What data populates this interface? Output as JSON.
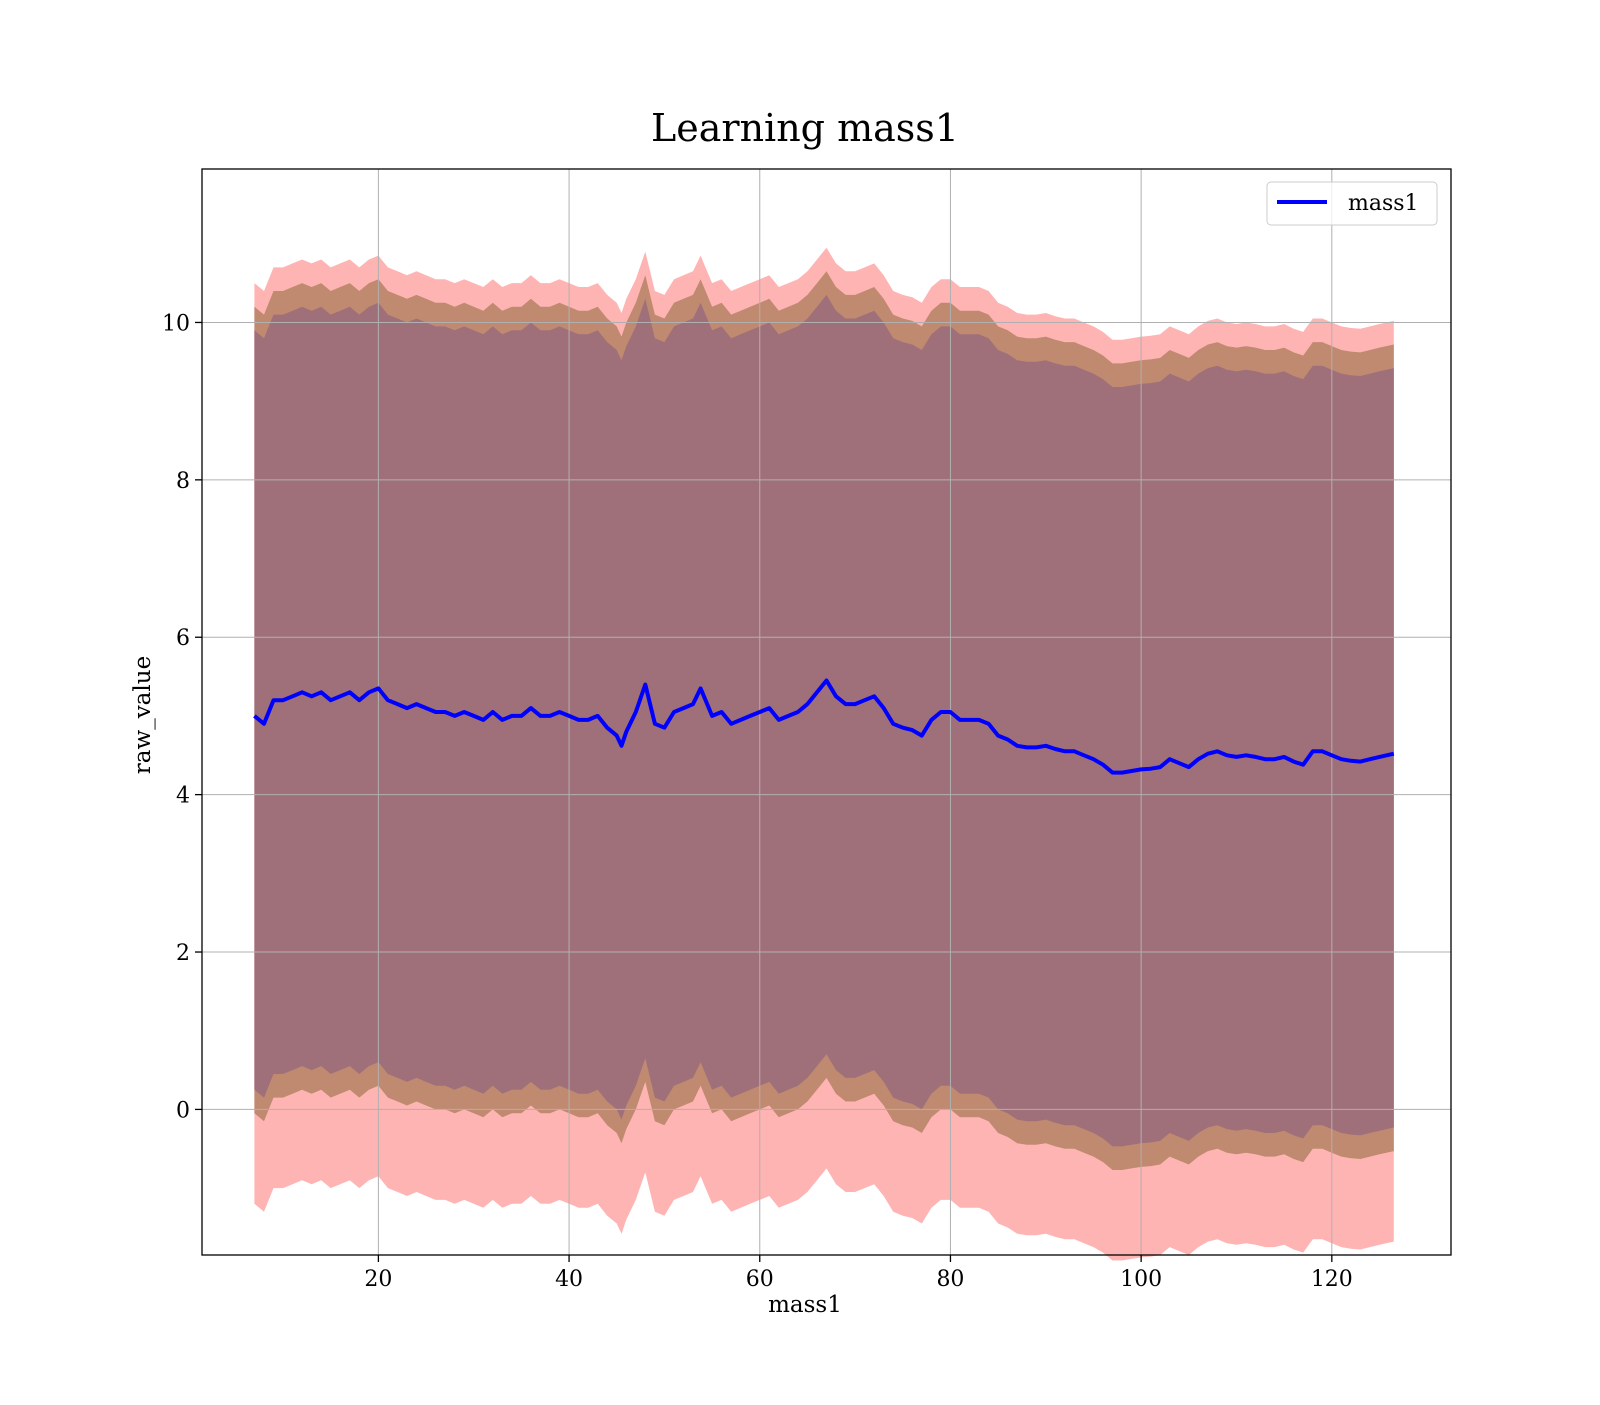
{
  "chart_data": {
    "type": "area",
    "title": "Learning mass1",
    "xlabel": "mass1",
    "ylabel": "raw_value",
    "xlim": [
      1.5,
      132.5
    ],
    "ylim": [
      -1.85,
      11.95
    ],
    "x_ticks": [
      20,
      40,
      60,
      80,
      100,
      120
    ],
    "y_ticks": [
      0,
      2,
      4,
      6,
      8,
      10
    ],
    "grid": true,
    "legend": {
      "position": "top-right",
      "entries": [
        "mass1"
      ]
    },
    "colors": {
      "line": "#0000ff",
      "outer_band": "#ff8c8c",
      "middle_band": "#c08a70",
      "inner_band": "#a0707a",
      "grid": "#b0b0b0"
    },
    "series": [
      {
        "name": "mass1",
        "x": [
          7.0,
          8,
          9,
          10,
          11,
          12,
          13,
          14,
          15,
          16,
          17,
          18,
          19,
          20,
          21,
          22,
          23,
          24,
          25,
          26,
          27,
          28,
          29,
          30,
          31,
          32,
          33,
          34,
          35,
          36,
          37,
          38,
          39,
          40,
          41,
          42,
          43,
          44,
          45,
          45.5,
          46,
          47,
          48,
          49,
          50,
          51,
          52,
          53,
          53.8,
          55,
          56,
          57,
          58,
          59,
          60,
          61,
          62,
          63,
          64,
          65,
          66,
          67,
          68,
          69,
          70,
          71,
          72,
          73,
          74,
          75,
          76,
          77,
          78,
          79,
          80,
          81,
          82,
          83,
          84,
          85,
          86,
          87,
          88,
          89,
          90,
          91,
          92,
          93,
          94,
          95,
          96,
          97,
          98,
          99,
          100,
          101,
          102,
          103,
          104,
          105,
          106,
          107,
          108,
          109,
          110,
          111,
          112,
          113,
          114,
          115,
          116,
          117,
          118,
          119,
          120,
          121,
          122,
          123,
          124,
          125,
          126.5
        ],
        "values": [
          5.0,
          4.9,
          5.2,
          5.2,
          5.25,
          5.3,
          5.25,
          5.3,
          5.2,
          5.25,
          5.3,
          5.2,
          5.3,
          5.35,
          5.2,
          5.15,
          5.1,
          5.15,
          5.1,
          5.05,
          5.05,
          5.0,
          5.05,
          5.0,
          4.95,
          5.05,
          4.95,
          5.0,
          5.0,
          5.1,
          5.0,
          5.0,
          5.05,
          5.0,
          4.95,
          4.95,
          5.0,
          4.85,
          4.75,
          4.62,
          4.8,
          5.05,
          5.4,
          4.9,
          4.85,
          5.05,
          5.1,
          5.15,
          5.35,
          5.0,
          5.05,
          4.9,
          4.95,
          5.0,
          5.05,
          5.1,
          4.95,
          5.0,
          5.05,
          5.15,
          5.3,
          5.45,
          5.25,
          5.15,
          5.15,
          5.2,
          5.25,
          5.1,
          4.9,
          4.85,
          4.82,
          4.75,
          4.95,
          5.05,
          5.05,
          4.95,
          4.95,
          4.95,
          4.9,
          4.75,
          4.7,
          4.62,
          4.6,
          4.6,
          4.62,
          4.58,
          4.55,
          4.55,
          4.5,
          4.45,
          4.38,
          4.28,
          4.28,
          4.3,
          4.32,
          4.33,
          4.35,
          4.45,
          4.4,
          4.35,
          4.45,
          4.52,
          4.55,
          4.5,
          4.48,
          4.5,
          4.48,
          4.45,
          4.45,
          4.48,
          4.42,
          4.38,
          4.55,
          4.55,
          4.5,
          4.45,
          4.43,
          4.42,
          4.45,
          4.48,
          4.52
        ]
      }
    ],
    "bands": [
      {
        "offset_low": -6.2,
        "offset_high": 5.5
      },
      {
        "offset_low": -5.05,
        "offset_high": 5.2
      },
      {
        "offset_low": -4.75,
        "offset_high": 4.9
      }
    ]
  }
}
